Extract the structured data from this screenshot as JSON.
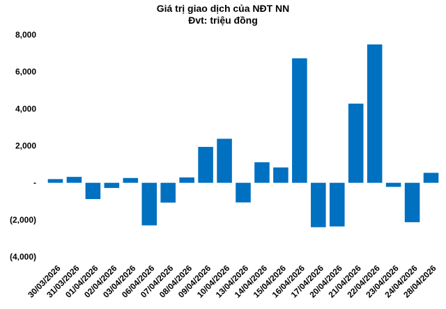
{
  "chart_data": {
    "type": "bar",
    "title": "Giá trị giao dịch của NĐT NN",
    "subtitle": "Đvt: triệu đồng",
    "xlabel": "",
    "ylabel": "",
    "ylim": [
      -4000,
      8000
    ],
    "yticks": [
      8000,
      6000,
      4000,
      2000,
      0,
      -2000,
      -4000
    ],
    "ytick_labels": [
      "8,000",
      "6,000",
      "4,000",
      "2,000",
      "-",
      "(2,000)",
      "(4,000)"
    ],
    "grid": false,
    "bar_color": "#0070C0",
    "categories": [
      "30/03/2026",
      "31/03/2026",
      "01/04/2026",
      "02/04/2026",
      "03/04/2026",
      "06/04/2026",
      "07/04/2026",
      "08/04/2026",
      "09/04/2026",
      "10/04/2026",
      "13/04/2026",
      "14/04/2026",
      "15/04/2026",
      "16/04/2026",
      "17/04/2026",
      "20/04/2026",
      "21/04/2026",
      "22/04/2026",
      "23/04/2026",
      "24/04/2026",
      "28/04/2026"
    ],
    "values": [
      200,
      320,
      -880,
      -280,
      260,
      -2300,
      -1070,
      290,
      1940,
      2380,
      -1060,
      1110,
      830,
      6730,
      -2400,
      -2360,
      4280,
      7480,
      -220,
      -2130,
      540
    ]
  }
}
